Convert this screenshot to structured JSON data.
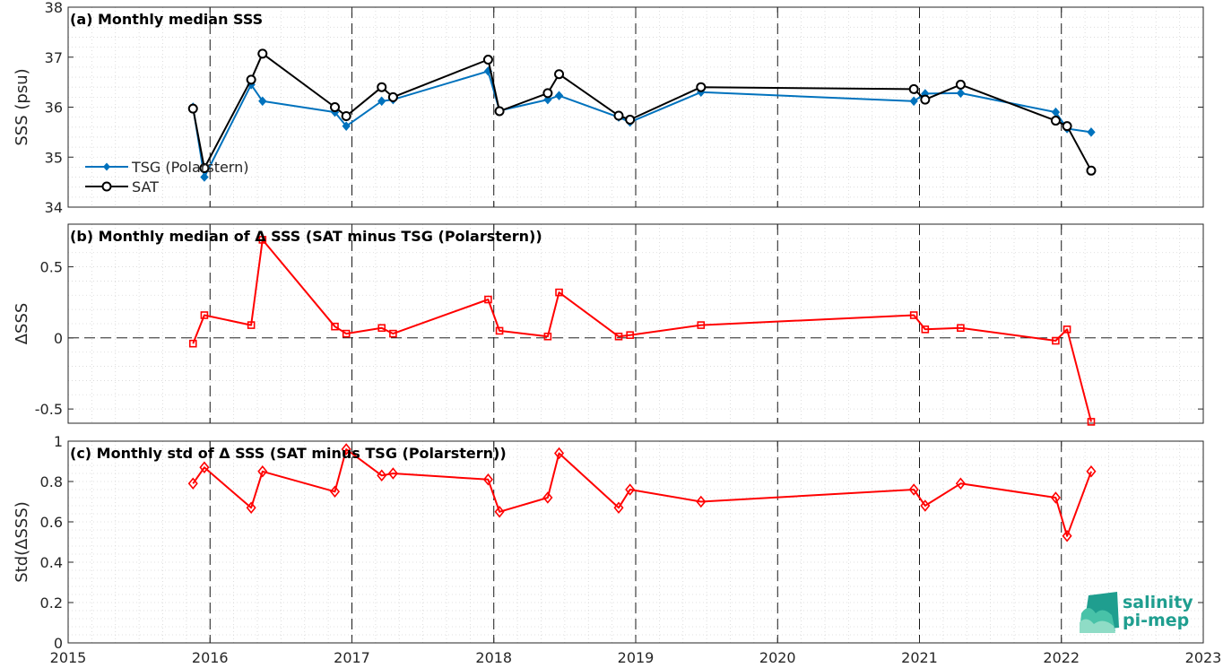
{
  "logo": {
    "line1": "salinity",
    "line2": "pi-mep",
    "color": "#2aa198"
  },
  "chart_data": [
    {
      "type": "line",
      "title": "(a) Monthly median SSS",
      "ylabel": "SSS (psu)",
      "xlim": [
        2015,
        2023
      ],
      "ylim": [
        34,
        38
      ],
      "yticks": [
        34,
        35,
        36,
        37,
        38
      ],
      "legend": {
        "placement": "middle-left"
      },
      "series": [
        {
          "name": "TSG (Polarstern)",
          "color": "#0072BD",
          "marker": "diamond-filled",
          "x": [
            2015.88,
            2015.96,
            2016.29,
            2016.37,
            2016.88,
            2016.96,
            2017.21,
            2017.29,
            2017.96,
            2018.04,
            2018.38,
            2018.46,
            2018.88,
            2018.96,
            2019.46,
            2020.96,
            2021.04,
            2021.29,
            2021.96,
            2022.04,
            2022.21
          ],
          "y": [
            36.0,
            34.6,
            36.45,
            36.12,
            35.9,
            35.62,
            36.12,
            36.15,
            36.72,
            35.93,
            36.15,
            36.23,
            35.8,
            35.7,
            36.3,
            36.12,
            36.27,
            36.28,
            35.9,
            35.57,
            35.5
          ]
        },
        {
          "name": "SAT",
          "color": "#000000",
          "marker": "circle-open",
          "x": [
            2015.88,
            2015.96,
            2016.29,
            2016.37,
            2016.88,
            2016.96,
            2017.21,
            2017.29,
            2017.96,
            2018.04,
            2018.38,
            2018.46,
            2018.88,
            2018.96,
            2019.46,
            2020.96,
            2021.04,
            2021.29,
            2021.96,
            2022.04,
            2022.21
          ],
          "y": [
            35.97,
            34.78,
            36.55,
            37.07,
            36.0,
            35.82,
            36.4,
            36.2,
            36.95,
            35.92,
            36.28,
            36.66,
            35.83,
            35.75,
            36.4,
            36.36,
            36.15,
            36.45,
            35.73,
            35.62,
            34.73
          ]
        }
      ]
    },
    {
      "type": "line",
      "title": "(b) Monthly median of Δ SSS (SAT minus TSG (Polarstern))",
      "ylabel": "ΔSSS",
      "xlim": [
        2015,
        2023
      ],
      "ylim": [
        -0.6,
        0.8
      ],
      "yticks": [
        -0.5,
        0,
        0.5
      ],
      "ytick_labels": [
        "-0.5",
        "0",
        "0.5"
      ],
      "zero_line": true,
      "series": [
        {
          "color": "#FF0000",
          "marker": "square-open",
          "x": [
            2015.88,
            2015.96,
            2016.29,
            2016.37,
            2016.88,
            2016.96,
            2017.21,
            2017.29,
            2017.96,
            2018.04,
            2018.38,
            2018.46,
            2018.88,
            2018.96,
            2019.46,
            2020.96,
            2021.04,
            2021.29,
            2021.96,
            2022.04,
            2022.21
          ],
          "y": [
            -0.04,
            0.16,
            0.09,
            0.69,
            0.08,
            0.03,
            0.07,
            0.03,
            0.27,
            0.05,
            0.01,
            0.32,
            0.01,
            0.02,
            0.09,
            0.16,
            0.06,
            0.07,
            -0.02,
            0.06,
            -0.59
          ]
        }
      ]
    },
    {
      "type": "line",
      "title": "(c) Monthly std of Δ SSS (SAT minus TSG (Polarstern))",
      "ylabel": "Std(ΔSSS)",
      "xlim": [
        2015,
        2023
      ],
      "ylim": [
        0,
        1
      ],
      "yticks": [
        0,
        0.2,
        0.4,
        0.6,
        0.8,
        1
      ],
      "ytick_labels": [
        "0",
        "0.2",
        "0.4",
        "0.6",
        "0.8",
        "1"
      ],
      "xticks": [
        2015,
        2016,
        2017,
        2018,
        2019,
        2020,
        2021,
        2022,
        2023
      ],
      "xtick_labels": [
        "2015",
        "2016",
        "2017",
        "2018",
        "2019",
        "2020",
        "2021",
        "2022",
        "2023"
      ],
      "series": [
        {
          "color": "#FF0000",
          "marker": "diamond-open",
          "x": [
            2015.88,
            2015.96,
            2016.29,
            2016.37,
            2016.88,
            2016.96,
            2017.21,
            2017.29,
            2017.96,
            2018.04,
            2018.38,
            2018.46,
            2018.88,
            2018.96,
            2019.46,
            2020.96,
            2021.04,
            2021.29,
            2021.96,
            2022.04,
            2022.21
          ],
          "y": [
            0.79,
            0.87,
            0.67,
            0.85,
            0.75,
            0.96,
            0.83,
            0.84,
            0.81,
            0.65,
            0.72,
            0.94,
            0.67,
            0.76,
            0.7,
            0.76,
            0.68,
            0.79,
            0.72,
            0.53,
            0.85
          ]
        }
      ]
    }
  ]
}
